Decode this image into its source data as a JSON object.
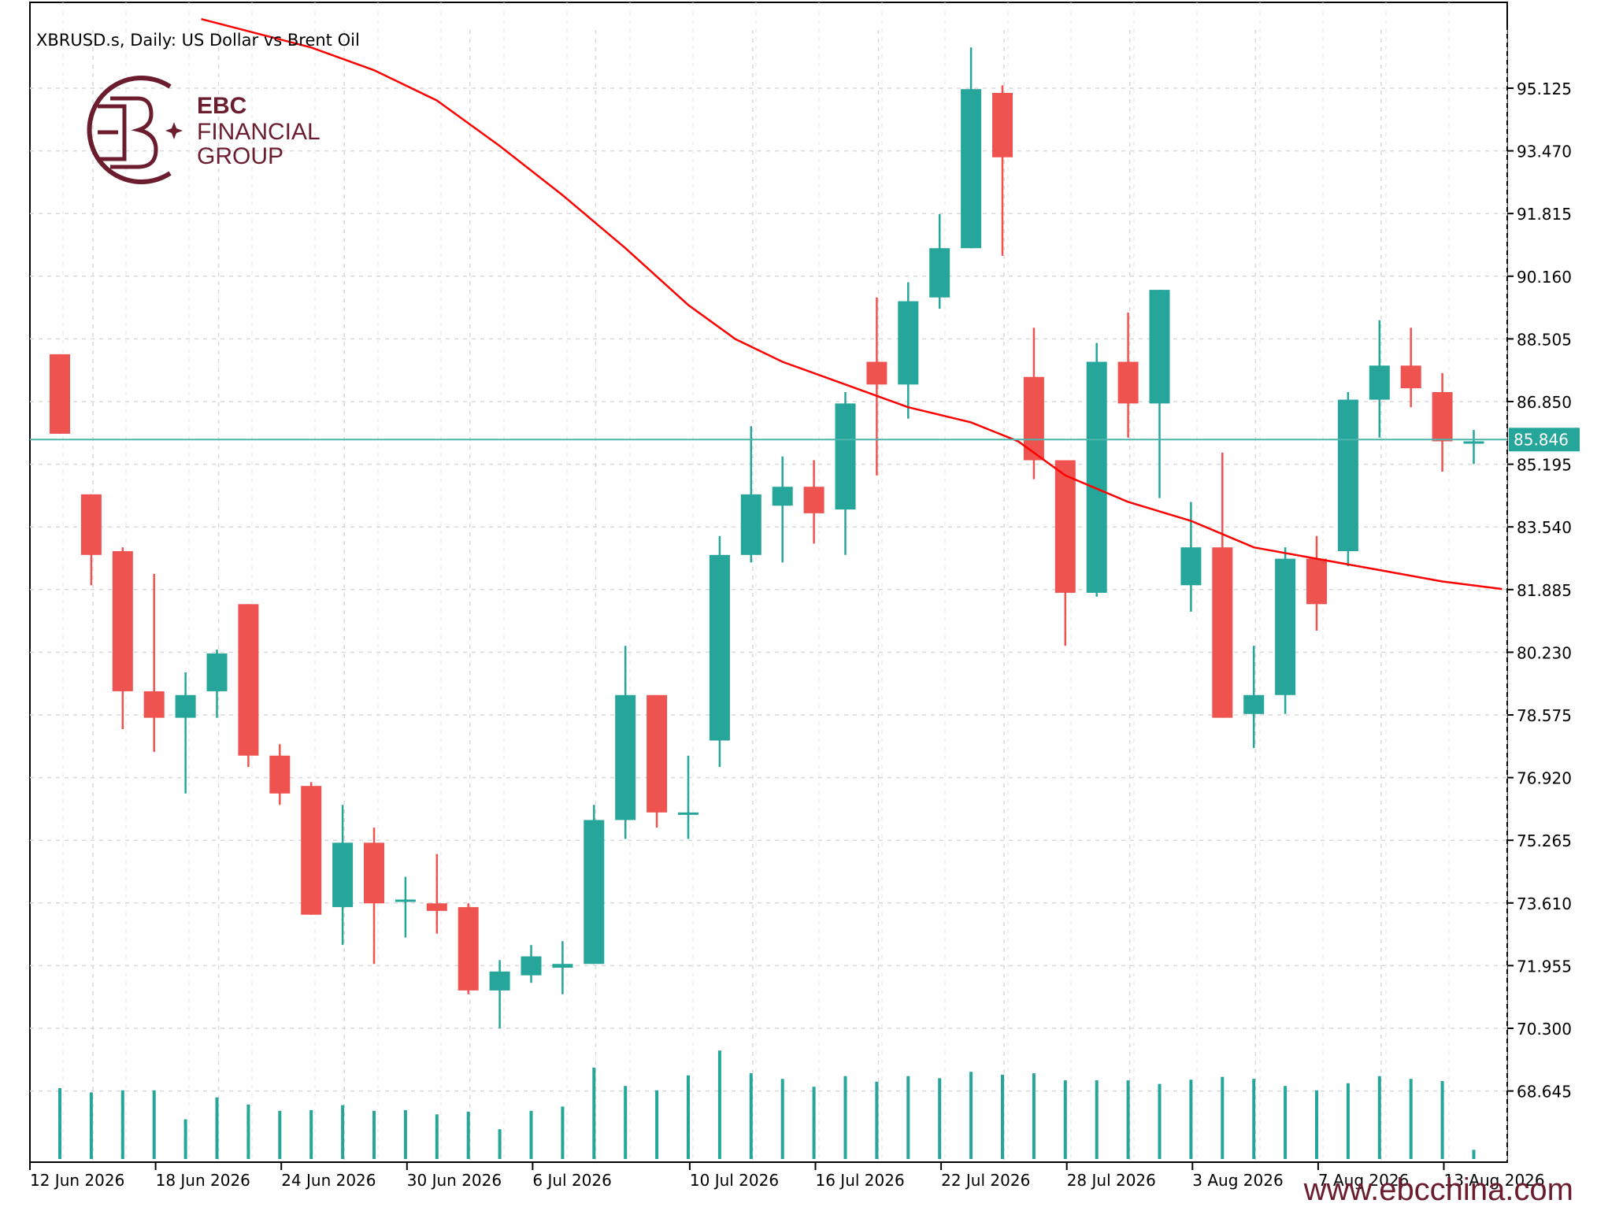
{
  "symbol_title": "XBRUSD.s, Daily:  US Dollar vs Brent Oil",
  "brand": {
    "line1": "EBC",
    "line2": "FINANCIAL",
    "line3": "GROUP",
    "color": "#6b1d2e"
  },
  "footer_url": "www.ebcchina.com",
  "colors": {
    "bull": "#26a69a",
    "bear": "#ef5350",
    "ma": "#ff0000",
    "price_line": "#4db6ac",
    "grid": "#d9d9d9"
  },
  "chart_data": {
    "type": "candlestick",
    "y_ticks": [
      "95.125",
      "93.470",
      "91.815",
      "90.160",
      "88.505",
      "86.850",
      "85.195",
      "83.540",
      "81.885",
      "80.230",
      "78.575",
      "76.920",
      "75.265",
      "73.610",
      "71.955",
      "70.300",
      "68.645"
    ],
    "x_tick_labels": [
      "12 Jun 2026",
      "18 Jun 2026",
      "24 Jun 2026",
      "30 Jun 2026",
      "6 Jul 2026",
      "10 Jul 2026",
      "16 Jul 2026",
      "22 Jul 2026",
      "28 Jul 2026",
      "3 Aug 2026",
      "7 Aug 2026",
      "13 Aug 2026"
    ],
    "x_tick_bar_index": [
      0,
      4,
      8,
      12,
      16,
      21,
      25,
      29,
      33,
      37,
      41,
      45
    ],
    "current_price": "85.846",
    "ylim": [
      67.0,
      97.0
    ],
    "candles": [
      {
        "o": 88.1,
        "h": 88.1,
        "l": 86.0,
        "c": 86.0
      },
      {
        "o": 84.4,
        "h": 84.4,
        "l": 82.0,
        "c": 82.8
      },
      {
        "o": 82.9,
        "h": 83.0,
        "l": 78.2,
        "c": 79.2
      },
      {
        "o": 79.2,
        "h": 82.3,
        "l": 77.6,
        "c": 78.5
      },
      {
        "o": 78.5,
        "h": 79.7,
        "l": 76.5,
        "c": 79.1
      },
      {
        "o": 79.2,
        "h": 80.3,
        "l": 78.5,
        "c": 80.2
      },
      {
        "o": 81.5,
        "h": 81.5,
        "l": 77.2,
        "c": 77.5
      },
      {
        "o": 77.5,
        "h": 77.8,
        "l": 76.2,
        "c": 76.5
      },
      {
        "o": 76.7,
        "h": 76.8,
        "l": 73.3,
        "c": 73.3
      },
      {
        "o": 73.5,
        "h": 76.2,
        "l": 72.5,
        "c": 75.2
      },
      {
        "o": 75.2,
        "h": 75.6,
        "l": 72.0,
        "c": 73.6
      },
      {
        "o": 73.7,
        "h": 74.3,
        "l": 72.7,
        "c": 73.7
      },
      {
        "o": 73.6,
        "h": 74.9,
        "l": 72.8,
        "c": 73.4
      },
      {
        "o": 73.5,
        "h": 73.6,
        "l": 71.2,
        "c": 71.3
      },
      {
        "o": 71.3,
        "h": 72.1,
        "l": 70.3,
        "c": 71.8
      },
      {
        "o": 71.7,
        "h": 72.5,
        "l": 71.5,
        "c": 72.2
      },
      {
        "o": 71.9,
        "h": 72.6,
        "l": 71.2,
        "c": 72.0
      },
      {
        "o": 72.0,
        "h": 76.2,
        "l": 72.0,
        "c": 75.8
      },
      {
        "o": 75.8,
        "h": 80.4,
        "l": 75.3,
        "c": 79.1
      },
      {
        "o": 79.1,
        "h": 79.1,
        "l": 75.6,
        "c": 76.0
      },
      {
        "o": 76.0,
        "h": 77.5,
        "l": 75.3,
        "c": 76.0
      },
      {
        "o": 77.9,
        "h": 83.3,
        "l": 77.2,
        "c": 82.8
      },
      {
        "o": 82.8,
        "h": 86.2,
        "l": 82.6,
        "c": 84.4
      },
      {
        "o": 84.1,
        "h": 85.4,
        "l": 82.6,
        "c": 84.6
      },
      {
        "o": 84.6,
        "h": 85.3,
        "l": 83.1,
        "c": 83.9
      },
      {
        "o": 84.0,
        "h": 87.1,
        "l": 82.8,
        "c": 86.8
      },
      {
        "o": 87.9,
        "h": 89.6,
        "l": 84.9,
        "c": 87.3
      },
      {
        "o": 87.3,
        "h": 90.0,
        "l": 86.4,
        "c": 89.5
      },
      {
        "o": 89.6,
        "h": 91.8,
        "l": 89.3,
        "c": 90.9
      },
      {
        "o": 90.9,
        "h": 96.2,
        "l": 90.9,
        "c": 95.1
      },
      {
        "o": 95.0,
        "h": 95.2,
        "l": 90.7,
        "c": 93.3
      },
      {
        "o": 87.5,
        "h": 88.8,
        "l": 84.8,
        "c": 85.3
      },
      {
        "o": 85.3,
        "h": 85.3,
        "l": 80.4,
        "c": 81.8
      },
      {
        "o": 81.8,
        "h": 88.4,
        "l": 81.7,
        "c": 87.9
      },
      {
        "o": 87.9,
        "h": 89.2,
        "l": 85.9,
        "c": 86.8
      },
      {
        "o": 86.8,
        "h": 89.8,
        "l": 84.3,
        "c": 89.8
      },
      {
        "o": 82.0,
        "h": 84.2,
        "l": 81.3,
        "c": 83.0
      },
      {
        "o": 83.0,
        "h": 85.5,
        "l": 78.5,
        "c": 78.5
      },
      {
        "o": 78.6,
        "h": 80.4,
        "l": 77.7,
        "c": 79.1
      },
      {
        "o": 79.1,
        "h": 83.0,
        "l": 78.6,
        "c": 82.7
      },
      {
        "o": 82.7,
        "h": 83.3,
        "l": 80.8,
        "c": 81.5
      },
      {
        "o": 82.9,
        "h": 87.1,
        "l": 82.5,
        "c": 86.9
      },
      {
        "o": 86.9,
        "h": 89.0,
        "l": 85.9,
        "c": 87.8
      },
      {
        "o": 87.8,
        "h": 88.8,
        "l": 86.7,
        "c": 87.2
      },
      {
        "o": 87.1,
        "h": 87.6,
        "l": 85.0,
        "c": 85.8
      },
      {
        "o": 85.8,
        "h": 86.1,
        "l": 85.2,
        "c": 85.8
      }
    ],
    "volumes": [
      1.0,
      0.94,
      0.97,
      0.97,
      0.56,
      0.87,
      0.77,
      0.68,
      0.69,
      0.76,
      0.68,
      0.69,
      0.63,
      0.67,
      0.42,
      0.68,
      0.74,
      1.29,
      1.03,
      0.97,
      1.18,
      1.53,
      1.21,
      1.13,
      1.02,
      1.17,
      1.09,
      1.17,
      1.14,
      1.23,
      1.19,
      1.21,
      1.11,
      1.11,
      1.11,
      1.06,
      1.12,
      1.16,
      1.13,
      1.03,
      0.97,
      1.07,
      1.17,
      1.13,
      1.1,
      0.13
    ],
    "ma": [
      {
        "i": 4.5,
        "v": 96.95
      },
      {
        "i": 8,
        "v": 96.2
      },
      {
        "i": 10,
        "v": 95.6
      },
      {
        "i": 12,
        "v": 94.8
      },
      {
        "i": 14,
        "v": 93.6
      },
      {
        "i": 16,
        "v": 92.3
      },
      {
        "i": 18,
        "v": 90.9
      },
      {
        "i": 20,
        "v": 89.4
      },
      {
        "i": 21.5,
        "v": 88.5
      },
      {
        "i": 23,
        "v": 87.9
      },
      {
        "i": 25,
        "v": 87.3
      },
      {
        "i": 27,
        "v": 86.7
      },
      {
        "i": 29,
        "v": 86.3
      },
      {
        "i": 30.5,
        "v": 85.8
      },
      {
        "i": 32,
        "v": 84.9
      },
      {
        "i": 34,
        "v": 84.2
      },
      {
        "i": 36,
        "v": 83.7
      },
      {
        "i": 38,
        "v": 83.0
      },
      {
        "i": 40,
        "v": 82.7
      },
      {
        "i": 42,
        "v": 82.4
      },
      {
        "i": 44,
        "v": 82.1
      },
      {
        "i": 45.9,
        "v": 81.9
      }
    ]
  }
}
